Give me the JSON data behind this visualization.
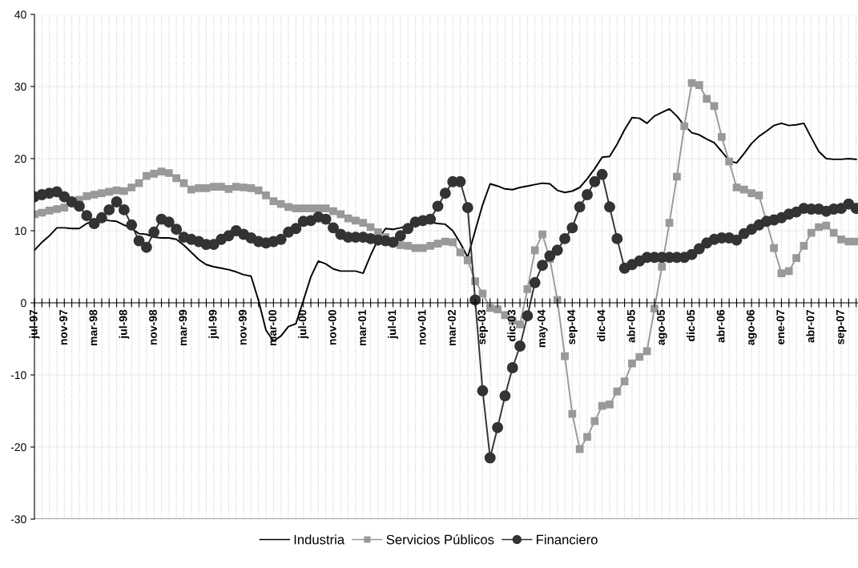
{
  "chart_data": {
    "type": "line",
    "categories": [
      "jul-97",
      null,
      null,
      null,
      "nov-97",
      null,
      null,
      null,
      "mar-98",
      null,
      null,
      null,
      "jul-98",
      null,
      null,
      null,
      "nov-98",
      null,
      null,
      null,
      "mar-99",
      null,
      null,
      null,
      "jul-99",
      null,
      null,
      null,
      "nov-99",
      null,
      null,
      null,
      "mar-00",
      null,
      null,
      null,
      "jul-00",
      null,
      null,
      null,
      "nov-00",
      null,
      null,
      null,
      "mar-01",
      null,
      null,
      null,
      "jul-01",
      null,
      null,
      null,
      "nov-01",
      null,
      null,
      null,
      "mar-02",
      null,
      null,
      null,
      "sep-03",
      null,
      null,
      null,
      "dic-03",
      null,
      null,
      null,
      "may-04",
      null,
      null,
      null,
      "sep-04",
      null,
      null,
      null,
      "dic-04",
      null,
      null,
      null,
      "abr-05",
      null,
      null,
      null,
      "ago-05",
      null,
      null,
      null,
      "dic-05",
      null,
      null,
      null,
      "abr-06",
      null,
      null,
      null,
      "ago-06",
      null,
      null,
      null,
      "ene-07",
      null,
      null,
      null,
      "abr-07",
      null,
      null,
      null,
      "sep-07",
      null,
      null
    ],
    "series": [
      {
        "name": "Industria",
        "color": "#000000",
        "marker": "none",
        "values": [
          7.3,
          8.4,
          9.3,
          10.4,
          10.4,
          10.3,
          10.3,
          11.0,
          11.4,
          11.6,
          11.4,
          11.3,
          10.8,
          10.3,
          9.6,
          9.5,
          9.1,
          9.0,
          9.0,
          8.8,
          8.0,
          7.0,
          6.0,
          5.3,
          5.0,
          4.8,
          4.6,
          4.3,
          3.9,
          3.7,
          0.3,
          -3.8,
          -5.3,
          -4.6,
          -3.3,
          -2.9,
          0.3,
          3.6,
          5.8,
          5.4,
          4.7,
          4.4,
          4.4,
          4.4,
          4.1,
          6.6,
          8.8,
          10.3,
          10.2,
          10.4,
          10.7,
          11.0,
          11.2,
          11.2,
          11.0,
          10.9,
          10.0,
          8.3,
          6.3,
          10.0,
          13.6,
          16.5,
          16.2,
          15.8,
          15.7,
          16.0,
          16.2,
          16.4,
          16.6,
          16.5,
          15.6,
          15.3,
          15.5,
          16.0,
          17.2,
          18.6,
          20.2,
          20.3,
          22.0,
          24.0,
          25.7,
          25.6,
          24.9,
          25.9,
          26.4,
          26.9,
          25.9,
          24.6,
          23.6,
          23.3,
          22.7,
          22.2,
          21.0,
          19.7,
          19.4,
          20.7,
          22.1,
          23.1,
          23.8,
          24.6,
          24.9,
          24.6,
          24.7,
          24.9,
          22.9,
          21.0,
          20.0,
          19.9,
          19.9,
          20.0,
          19.9
        ]
      },
      {
        "name": "Servicios Públicos",
        "color": "#999999",
        "marker": "square",
        "values": [
          12.3,
          12.5,
          12.8,
          13.0,
          13.2,
          null,
          14.3,
          14.8,
          15.0,
          15.2,
          15.4,
          15.6,
          15.5,
          16.0,
          16.6,
          17.6,
          17.9,
          18.2,
          18.0,
          17.3,
          16.6,
          15.7,
          15.9,
          15.9,
          16.1,
          16.1,
          15.8,
          16.1,
          16.0,
          15.9,
          15.6,
          14.9,
          14.1,
          13.7,
          13.3,
          13.1,
          13.1,
          13.1,
          13.1,
          13.1,
          12.7,
          12.3,
          11.7,
          11.4,
          11.1,
          10.5,
          9.8,
          9.1,
          null,
          8.0,
          7.9,
          7.6,
          7.6,
          7.9,
          8.2,
          8.5,
          8.4,
          7.0,
          5.9,
          3.0,
          1.3,
          -0.7,
          -0.9,
          -1.7,
          -2.5,
          -3.0,
          1.9,
          7.3,
          9.5,
          6.1,
          0.4,
          -7.4,
          -15.4,
          -20.3,
          -18.6,
          -16.4,
          -14.3,
          -14.1,
          -12.3,
          -10.9,
          -8.4,
          -7.5,
          -6.7,
          -0.8,
          5.0,
          11.1,
          17.5,
          24.5,
          30.5,
          30.2,
          28.3,
          27.3,
          23.0,
          19.6,
          16.0,
          15.7,
          15.2,
          14.9,
          null,
          7.6,
          4.1,
          4.4,
          6.2,
          7.9,
          9.7,
          10.5,
          10.7,
          9.7,
          8.8,
          8.5,
          8.5
        ]
      },
      {
        "name": "Financiero",
        "color": "#333333",
        "marker": "circle",
        "values": [
          14.7,
          15.0,
          15.2,
          15.4,
          14.7,
          14.0,
          13.4,
          12.1,
          11.0,
          11.8,
          12.9,
          14.0,
          12.9,
          10.8,
          8.6,
          7.7,
          9.8,
          11.6,
          11.2,
          10.2,
          9.1,
          8.8,
          8.5,
          8.1,
          8.1,
          8.8,
          9.3,
          10.0,
          9.5,
          9.0,
          8.5,
          8.3,
          8.5,
          8.8,
          9.8,
          10.3,
          11.3,
          11.4,
          11.9,
          11.6,
          10.4,
          9.5,
          9.1,
          9.1,
          9.1,
          8.9,
          8.7,
          8.6,
          8.4,
          9.3,
          10.3,
          11.2,
          11.4,
          11.6,
          13.4,
          15.2,
          16.8,
          16.8,
          13.2,
          0.4,
          -12.2,
          -21.5,
          -17.3,
          -12.9,
          -9.0,
          -6.0,
          -1.8,
          2.8,
          5.2,
          6.5,
          7.3,
          8.9,
          10.4,
          13.3,
          15.0,
          16.8,
          17.8,
          13.3,
          8.9,
          4.8,
          5.3,
          5.8,
          6.3,
          6.3,
          6.3,
          6.3,
          6.3,
          6.3,
          6.7,
          7.5,
          8.3,
          8.8,
          9.0,
          9.0,
          8.7,
          9.6,
          10.2,
          10.8,
          11.3,
          11.5,
          11.8,
          12.3,
          12.6,
          13.1,
          13.0,
          13.0,
          12.7,
          13.0,
          13.1,
          13.7,
          13.1
        ]
      }
    ],
    "ylim": [
      -30,
      40
    ],
    "yticks": [
      -30,
      -20,
      -10,
      0,
      10,
      20,
      30,
      40
    ],
    "grid": true,
    "legend": "bottom",
    "line_style": "solid"
  }
}
